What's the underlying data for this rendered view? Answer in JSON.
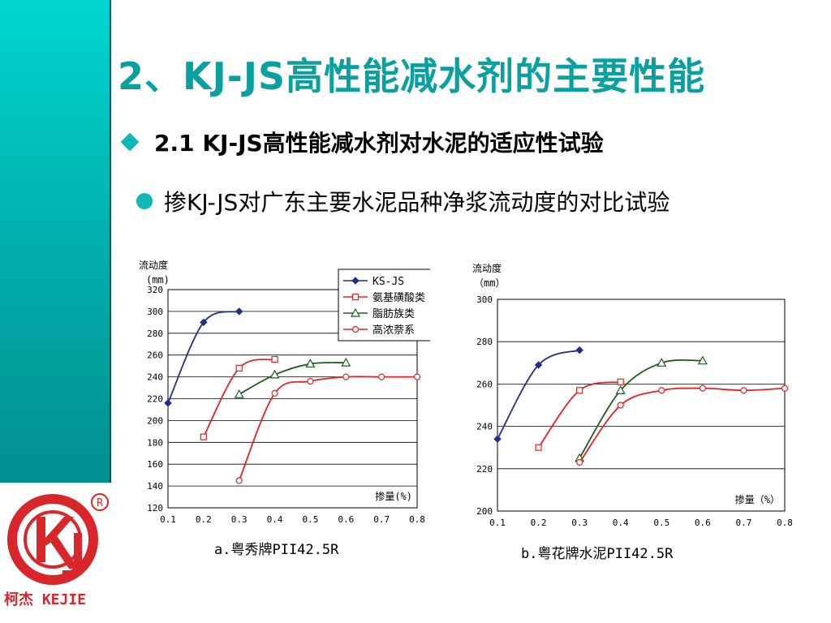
{
  "slide": {
    "title": "2、KJ-JS高性能减水剂的主要性能",
    "subtitle": "2.1  KJ-JS高性能减水剂对水泥的适应性试验",
    "bullet": "掺KJ-JS对广东主要水泥品种净浆流动度的对比试验",
    "accent_color": "#0aa0a0",
    "logo": {
      "text": "柯杰 KEJIE",
      "icon": "kj-logo-icon",
      "color": "#d8262b"
    }
  },
  "chart_data": [
    {
      "type": "line",
      "caption": "a.粤秀牌PII42.5R",
      "ylabel_line1": "流动度",
      "ylabel_line2": "(mm)",
      "xlabel": "掺量(%)",
      "xlim": [
        0.1,
        0.8
      ],
      "ylim": [
        120,
        320
      ],
      "xticks": [
        "0.1",
        "0.2",
        "0.3",
        "0.4",
        "0.5",
        "0.6",
        "0.7",
        "0.8"
      ],
      "yticks": [
        "120",
        "140",
        "160",
        "180",
        "200",
        "220",
        "240",
        "260",
        "280",
        "300",
        "320"
      ],
      "grid": "horizontal",
      "legend_position": "top-right",
      "series": [
        {
          "name": "KS-JS",
          "color": "#1f2f8a",
          "marker": "diamond",
          "points": [
            [
              0.1,
              216
            ],
            [
              0.2,
              290
            ],
            [
              0.3,
              300
            ]
          ]
        },
        {
          "name": "氨基磺酸类",
          "color": "#e8201f",
          "marker": "square",
          "points": [
            [
              0.2,
              185
            ],
            [
              0.3,
              248
            ],
            [
              0.4,
              256
            ]
          ]
        },
        {
          "name": "脂肪族类",
          "color": "#1a5e1a",
          "marker": "triangle",
          "points": [
            [
              0.3,
              224
            ],
            [
              0.4,
              242
            ],
            [
              0.5,
              252
            ],
            [
              0.6,
              253
            ]
          ]
        },
        {
          "name": "高浓萘系",
          "color": "#e8201f",
          "marker": "circle",
          "points": [
            [
              0.3,
              145
            ],
            [
              0.4,
              225
            ],
            [
              0.5,
              236
            ],
            [
              0.6,
              240
            ],
            [
              0.7,
              240
            ],
            [
              0.8,
              240
            ]
          ]
        }
      ]
    },
    {
      "type": "line",
      "caption": "b.粤花牌水泥PII42.5R",
      "ylabel_line1": "流动度",
      "ylabel_line2": "（mm）",
      "xlabel": "掺量（%）",
      "xlim": [
        0.1,
        0.8
      ],
      "ylim": [
        200,
        300
      ],
      "xticks": [
        "0.1",
        "0.2",
        "0.3",
        "0.4",
        "0.5",
        "0.6",
        "0.7",
        "0.8"
      ],
      "yticks": [
        "200",
        "220",
        "240",
        "260",
        "280",
        "300"
      ],
      "grid": "horizontal",
      "series": [
        {
          "color": "#1f2f8a",
          "marker": "diamond",
          "points": [
            [
              0.1,
              234
            ],
            [
              0.2,
              269
            ],
            [
              0.3,
              276
            ]
          ]
        },
        {
          "color": "#e8201f",
          "marker": "square",
          "points": [
            [
              0.2,
              230
            ],
            [
              0.3,
              257
            ],
            [
              0.4,
              261
            ]
          ]
        },
        {
          "color": "#1a5e1a",
          "marker": "triangle",
          "points": [
            [
              0.3,
              225
            ],
            [
              0.4,
              257
            ],
            [
              0.5,
              270
            ],
            [
              0.6,
              271
            ]
          ]
        },
        {
          "color": "#e8201f",
          "marker": "circle",
          "points": [
            [
              0.3,
              223
            ],
            [
              0.4,
              250
            ],
            [
              0.5,
              257
            ],
            [
              0.6,
              258
            ],
            [
              0.7,
              257
            ],
            [
              0.8,
              258
            ]
          ]
        }
      ]
    }
  ]
}
